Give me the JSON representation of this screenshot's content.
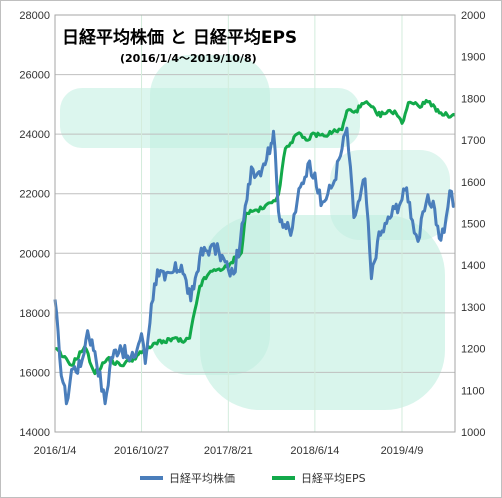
{
  "chart_data": {
    "type": "line",
    "title": "日経平均株価 と 日経平均EPS",
    "subtitle": "(2016/1/4〜2019/10/8)",
    "x_tick_labels": [
      "2016/1/4",
      "2016/10/27",
      "2017/8/21",
      "2018/6/14",
      "2019/4/9"
    ],
    "x_range": [
      "2016/1/4",
      "2019/10/8"
    ],
    "y_left": {
      "range": [
        14000,
        28000
      ],
      "ticks": [
        14000,
        16000,
        18000,
        20000,
        22000,
        24000,
        26000,
        28000
      ]
    },
    "y_right": {
      "range": [
        1000,
        2000
      ],
      "ticks": [
        1000,
        1100,
        1200,
        1300,
        1400,
        1500,
        1600,
        1700,
        1800,
        1900,
        2000
      ]
    },
    "grid": true,
    "legend_position": "bottom",
    "series": [
      {
        "name": "日経平均株価",
        "axis": "left",
        "color": "#4a7ebb",
        "points": [
          [
            "2016/01/04",
            18450
          ],
          [
            "2016/01/20",
            16500
          ],
          [
            "2016/02/12",
            14950
          ],
          [
            "2016/03/01",
            16100
          ],
          [
            "2016/04/01",
            16200
          ],
          [
            "2016/04/25",
            17400
          ],
          [
            "2016/05/20",
            16700
          ],
          [
            "2016/06/24",
            14950
          ],
          [
            "2016/07/15",
            16500
          ],
          [
            "2016/08/15",
            16900
          ],
          [
            "2016/09/15",
            16400
          ],
          [
            "2016/10/01",
            16500
          ],
          [
            "2016/10/27",
            17300
          ],
          [
            "2016/11/09",
            16300
          ],
          [
            "2016/11/30",
            18300
          ],
          [
            "2016/12/21",
            19450
          ],
          [
            "2017/01/15",
            19100
          ],
          [
            "2017/02/15",
            19400
          ],
          [
            "2017/03/13",
            19600
          ],
          [
            "2017/04/14",
            18400
          ],
          [
            "2017/05/15",
            19900
          ],
          [
            "2017/06/20",
            20200
          ],
          [
            "2017/07/20",
            20050
          ],
          [
            "2017/08/21",
            19450
          ],
          [
            "2017/09/08",
            19300
          ],
          [
            "2017/10/01",
            20400
          ],
          [
            "2017/10/24",
            21800
          ],
          [
            "2017/11/08",
            22900
          ],
          [
            "2017/11/30",
            22700
          ],
          [
            "2017/12/20",
            23000
          ],
          [
            "2018/01/15",
            23700
          ],
          [
            "2018/01/23",
            24100
          ],
          [
            "2018/02/09",
            21400
          ],
          [
            "2018/03/23",
            20600
          ],
          [
            "2018/04/15",
            21800
          ],
          [
            "2018/05/21",
            23000
          ],
          [
            "2018/06/14",
            22700
          ],
          [
            "2018/07/05",
            21600
          ],
          [
            "2018/08/15",
            22300
          ],
          [
            "2018/09/15",
            23500
          ],
          [
            "2018/10/02",
            24200
          ],
          [
            "2018/10/26",
            21200
          ],
          [
            "2018/11/15",
            21800
          ],
          [
            "2018/12/03",
            22500
          ],
          [
            "2018/12/25",
            19150
          ],
          [
            "2019/01/15",
            20400
          ],
          [
            "2019/02/15",
            21000
          ],
          [
            "2019/03/15",
            21500
          ],
          [
            "2019/04/09",
            21800
          ],
          [
            "2019/04/25",
            22200
          ],
          [
            "2019/05/15",
            21100
          ],
          [
            "2019/06/03",
            20400
          ],
          [
            "2019/07/01",
            21700
          ],
          [
            "2019/07/25",
            21750
          ],
          [
            "2019/08/15",
            20500
          ],
          [
            "2019/09/01",
            20700
          ],
          [
            "2019/09/20",
            22100
          ],
          [
            "2019/10/08",
            21600
          ]
        ]
      },
      {
        "name": "日経平均EPS",
        "axis": "right",
        "color": "#12a94a",
        "points": [
          [
            "2016/01/04",
            1200
          ],
          [
            "2016/02/01",
            1180
          ],
          [
            "2016/03/01",
            1160
          ],
          [
            "2016/04/15",
            1205
          ],
          [
            "2016/05/20",
            1140
          ],
          [
            "2016/07/01",
            1175
          ],
          [
            "2016/08/15",
            1160
          ],
          [
            "2016/09/15",
            1170
          ],
          [
            "2016/10/27",
            1190
          ],
          [
            "2016/12/01",
            1205
          ],
          [
            "2016/12/25",
            1220
          ],
          [
            "2017/01/15",
            1215
          ],
          [
            "2017/02/15",
            1225
          ],
          [
            "2017/03/20",
            1215
          ],
          [
            "2017/04/10",
            1225
          ],
          [
            "2017/05/15",
            1350
          ],
          [
            "2017/06/15",
            1380
          ],
          [
            "2017/07/15",
            1390
          ],
          [
            "2017/08/21",
            1395
          ],
          [
            "2017/09/15",
            1420
          ],
          [
            "2017/10/05",
            1430
          ],
          [
            "2017/10/20",
            1525
          ],
          [
            "2017/11/15",
            1530
          ],
          [
            "2017/12/15",
            1535
          ],
          [
            "2018/01/23",
            1555
          ],
          [
            "2018/02/09",
            1570
          ],
          [
            "2018/03/05",
            1680
          ],
          [
            "2018/04/15",
            1715
          ],
          [
            "2018/05/15",
            1700
          ],
          [
            "2018/06/14",
            1715
          ],
          [
            "2018/07/15",
            1710
          ],
          [
            "2018/08/15",
            1720
          ],
          [
            "2018/09/15",
            1725
          ],
          [
            "2018/10/02",
            1770
          ],
          [
            "2018/11/01",
            1770
          ],
          [
            "2018/12/03",
            1790
          ],
          [
            "2018/12/25",
            1780
          ],
          [
            "2019/01/15",
            1760
          ],
          [
            "2019/02/15",
            1765
          ],
          [
            "2019/03/15",
            1770
          ],
          [
            "2019/04/09",
            1740
          ],
          [
            "2019/05/01",
            1790
          ],
          [
            "2019/05/25",
            1790
          ],
          [
            "2019/06/15",
            1780
          ],
          [
            "2019/07/01",
            1795
          ],
          [
            "2019/07/25",
            1785
          ],
          [
            "2019/08/15",
            1765
          ],
          [
            "2019/09/01",
            1760
          ],
          [
            "2019/10/08",
            1760
          ]
        ]
      }
    ]
  }
}
